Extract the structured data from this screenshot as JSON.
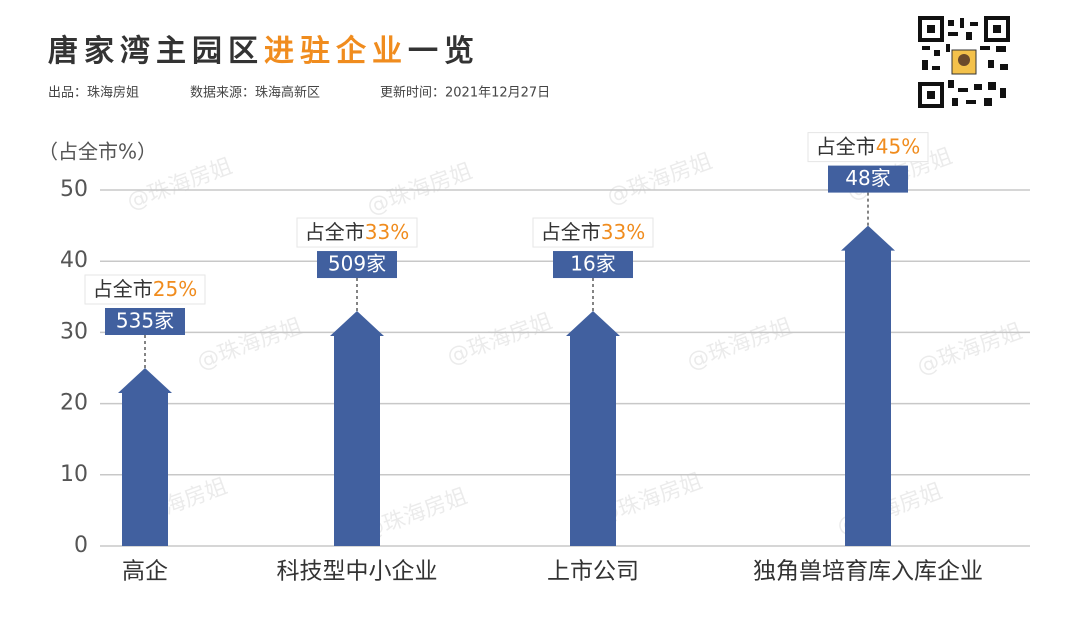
{
  "chart_data": {
    "type": "arrow-bar",
    "title_parts": [
      "唐家湾主园区",
      "进驻企业",
      "一览"
    ],
    "subtitles": [
      "出品：珠海房姐",
      "数据来源：珠海高新区",
      "更新时间：2021年12月27日"
    ],
    "y_label": "（占全市%）",
    "watermark": "@珠海房姐",
    "categories": [
      "高企",
      "科技型中小企业",
      "上市公司",
      "独角兽培育库入库企业"
    ],
    "values": [
      25,
      33,
      33,
      45
    ],
    "value_label_prefix": "占全市",
    "value_labels": [
      "25%",
      "33%",
      "33%",
      "45%"
    ],
    "count_labels": [
      "535家",
      "509家",
      "16家",
      "48家"
    ],
    "color": "#41609f",
    "accent_color": "#f08c1e",
    "ylim": [
      0,
      50
    ],
    "yticks": [
      0,
      10,
      20,
      30,
      40,
      50
    ],
    "grid": true
  }
}
